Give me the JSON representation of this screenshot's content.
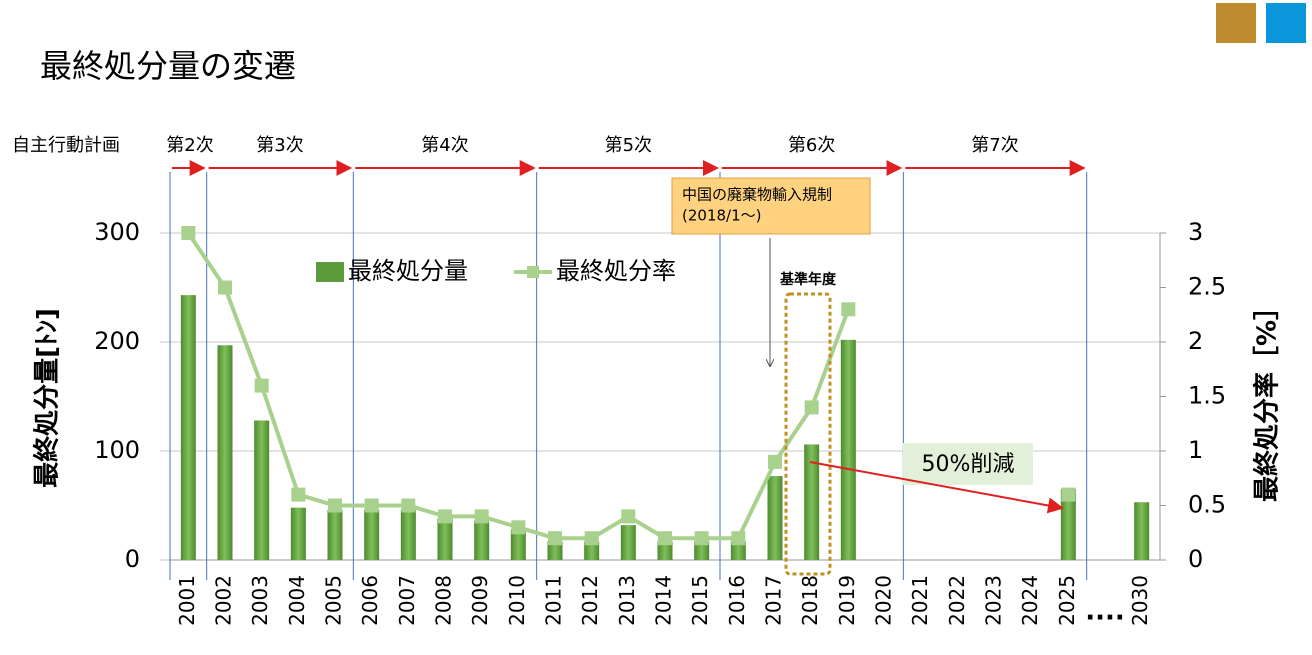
{
  "chart_data": {
    "type": "bar-line",
    "title": "最終処分量の変遷",
    "plan_label": "自主行動計画",
    "phases": [
      "第2次",
      "第3次",
      "第4次",
      "第5次",
      "第6次",
      "第7次"
    ],
    "categories": [
      "2001",
      "2002",
      "2003",
      "2004",
      "2005",
      "2006",
      "2007",
      "2008",
      "2009",
      "2010",
      "2011",
      "2012",
      "2013",
      "2014",
      "2015",
      "2016",
      "2017",
      "2018",
      "2019",
      "2020",
      "2021",
      "2022",
      "2023",
      "2024",
      "2025",
      "....",
      "2030"
    ],
    "series": [
      {
        "name": "最終処分量",
        "color": "#5b9b3c",
        "values": [
          243,
          197,
          128,
          48,
          46,
          46,
          46,
          38,
          36,
          28,
          17,
          17,
          32,
          17,
          17,
          17,
          77,
          106,
          202,
          null,
          null,
          null,
          null,
          null,
          65,
          null,
          53
        ]
      },
      {
        "name": "最終処分率",
        "color": "#a9d18e",
        "axis": "y2",
        "values": [
          3.0,
          2.5,
          1.6,
          0.6,
          0.5,
          0.5,
          0.5,
          0.4,
          0.4,
          0.3,
          0.2,
          0.2,
          0.4,
          0.2,
          0.2,
          0.2,
          0.9,
          1.4,
          2.3,
          null,
          null,
          null,
          null,
          null,
          0.6,
          null,
          null
        ]
      }
    ],
    "y_label": "最終処分量[ﾄﾝ]",
    "y2_label": "最終処分率［%］",
    "ylim": [
      0,
      300
    ],
    "yticks": [
      0,
      100,
      200,
      300
    ],
    "y2lim": [
      0,
      3
    ],
    "y2ticks": [
      0,
      0.5,
      1,
      1.5,
      2,
      2.5,
      3
    ],
    "grid": true,
    "annotations": {
      "regulation": [
        "中国の廃棄物輸入規制",
        "(2018/1～)"
      ],
      "base_year": "基準年度",
      "reduction": "50%削減"
    }
  }
}
